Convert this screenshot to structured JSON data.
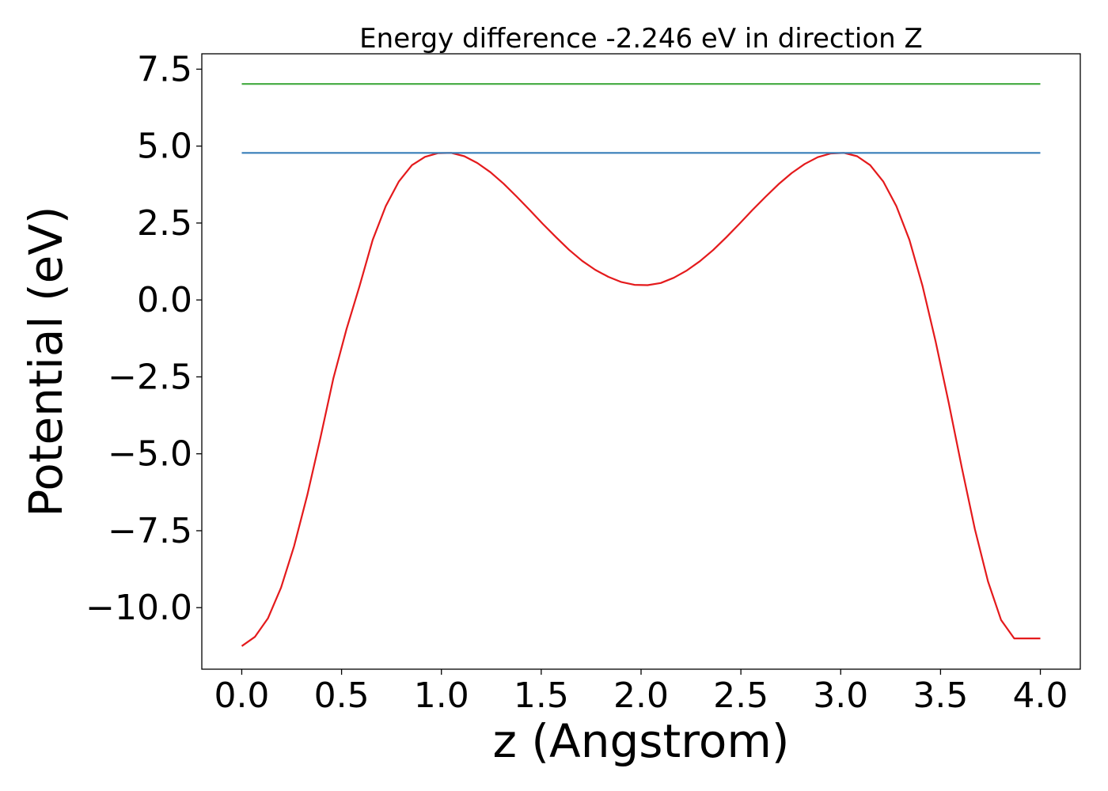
{
  "chart_data": {
    "type": "line",
    "title": "Energy difference -2.246 eV in direction Z",
    "xlabel": "z (Angstrom)",
    "ylabel": "Potential (eV)",
    "xlim": [
      -0.2,
      4.2
    ],
    "ylim": [
      -12.0,
      8.0
    ],
    "xticks": [
      0.0,
      0.5,
      1.0,
      1.5,
      2.0,
      2.5,
      3.0,
      3.5,
      4.0
    ],
    "xtick_labels": [
      "0.0",
      "0.5",
      "1.0",
      "1.5",
      "2.0",
      "2.5",
      "3.0",
      "3.5",
      "4.0"
    ],
    "yticks": [
      -10.0,
      -7.5,
      -5.0,
      -2.5,
      0.0,
      2.5,
      5.0,
      7.5
    ],
    "ytick_labels": [
      "−10.0",
      "−7.5",
      "−5.0",
      "−2.5",
      "0.0",
      "2.5",
      "5.0",
      "7.5"
    ],
    "grid": false,
    "series": [
      {
        "color": "#e41a1c",
        "x": [
          0.0,
          0.0656,
          0.1311,
          0.1967,
          0.2623,
          0.3279,
          0.3934,
          0.459,
          0.5246,
          0.5902,
          0.6557,
          0.7213,
          0.7869,
          0.8525,
          0.918,
          0.9836,
          1.0492,
          1.1148,
          1.1803,
          1.2459,
          1.3115,
          1.377,
          1.4426,
          1.5082,
          1.5738,
          1.6393,
          1.7049,
          1.7705,
          1.8361,
          1.9016,
          1.9672,
          2.0328,
          2.0984,
          2.1639,
          2.2295,
          2.2951,
          2.3607,
          2.4262,
          2.4918,
          2.5574,
          2.623,
          2.6885,
          2.7541,
          2.8197,
          2.8852,
          2.9508,
          3.0164,
          3.082,
          3.1475,
          3.2131,
          3.2787,
          3.3443,
          3.4098,
          3.4754,
          3.541,
          3.6066,
          3.6721,
          3.7377,
          3.8033,
          3.8689,
          3.9344,
          4.0
        ],
        "y": [
          -11.25,
          -10.95,
          -10.35,
          -9.35,
          -8.0,
          -6.35,
          -4.5,
          -2.55,
          -0.95,
          0.45,
          1.95,
          3.05,
          3.85,
          4.38,
          4.65,
          4.77,
          4.78,
          4.67,
          4.45,
          4.15,
          3.78,
          3.36,
          2.92,
          2.47,
          2.04,
          1.63,
          1.27,
          0.98,
          0.75,
          0.58,
          0.49,
          0.48,
          0.55,
          0.72,
          0.96,
          1.26,
          1.62,
          2.03,
          2.47,
          2.92,
          3.35,
          3.76,
          4.12,
          4.42,
          4.64,
          4.76,
          4.78,
          4.67,
          4.38,
          3.85,
          3.05,
          1.95,
          0.45,
          -1.35,
          -3.35,
          -5.45,
          -7.45,
          -9.15,
          -10.4,
          -11.0,
          -11.0,
          -11.0
        ]
      },
      {
        "color": "#377eb8",
        "x": [
          0.0,
          4.0
        ],
        "y": [
          4.78,
          4.78
        ]
      },
      {
        "color": "#4daf4a",
        "x": [
          0.0,
          4.0
        ],
        "y": [
          7.02,
          7.02
        ]
      }
    ]
  }
}
